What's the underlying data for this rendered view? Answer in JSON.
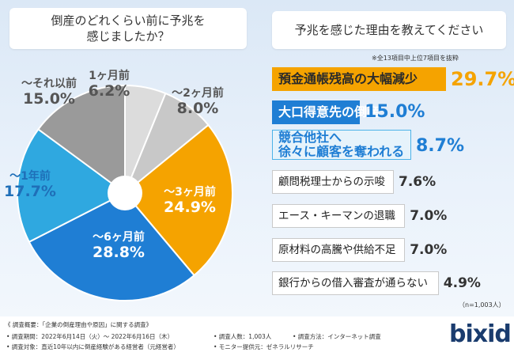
{
  "colors": {
    "orange": "#f5a300",
    "blue": "#1f7ed4",
    "light_blue": "#2fa8e0",
    "gray": "#9a9a9a",
    "light_gray": "#c8c8c8",
    "light_gray2": "#dcdcdc"
  },
  "left_title": "倒産のどれくらい前に予兆を\n感じましたか？",
  "right_title": "予兆を感じた理由を教えてください",
  "note_top": "※全13項目中上位7項目を抜粋",
  "n_note": "（n=1,003人）",
  "chart_data": [
    {
      "type": "pie",
      "title": "倒産のどれくらい前に予兆を感じましたか？",
      "slices": [
        {
          "label": "1ヶ月前",
          "value": 6.2,
          "value_text": "6.2%",
          "color": "#dcdcdc",
          "text_color": "#555555"
        },
        {
          "label": "～2ヶ月前",
          "value": 8.0,
          "value_text": "8.0%",
          "color": "#c8c8c8",
          "text_color": "#555555"
        },
        {
          "label": "～3ヶ月前",
          "value": 24.9,
          "value_text": "24.9%",
          "color": "#f5a300",
          "text_color": "#ffffff"
        },
        {
          "label": "～6ヶ月前",
          "value": 28.8,
          "value_text": "28.8%",
          "color": "#1f7ed4",
          "text_color": "#ffffff"
        },
        {
          "label": "～1年前",
          "value": 17.7,
          "value_text": "17.7%",
          "color": "#2fa8e0",
          "text_color": "#1f6fb8"
        },
        {
          "label": "～それ以前",
          "value": 15.0,
          "value_text": "15.0%",
          "color": "#9a9a9a",
          "text_color": "#555555"
        }
      ]
    },
    {
      "type": "bar",
      "orientation": "horizontal",
      "title": "予兆を感じた理由を教えてください",
      "categories": [
        "預金通帳残高の大幅減少",
        "大口得意先の倒産",
        "競合他社へ\n徐々に顧客を奪われる",
        "顧問税理士からの示唆",
        "エース・キーマンの退職",
        "原材料の高騰や供給不足",
        "銀行からの借入審査が通らない"
      ],
      "values": [
        29.7,
        15.0,
        8.7,
        7.6,
        7.0,
        7.0,
        4.9
      ],
      "value_texts": [
        "29.7%",
        "15.0%",
        "8.7%",
        "7.6%",
        "7.0%",
        "7.0%",
        "4.9%"
      ],
      "highlight": [
        "orange",
        "blue",
        "light",
        "none",
        "none",
        "none",
        "none"
      ]
    }
  ],
  "footer": {
    "line1": "《 調査概要：「企業の倒産理由や原因」に関する調査》",
    "period": "• 調査期間：2022年6月14日（火）～ 2022年6月16日（木）",
    "target": "• 調査対象：直近10年以内に倒産経験がある経営者（元経営者）",
    "people": "• 調査人数：1,003人",
    "method": "• 調査方法：インターネット調査",
    "provider": "• モニター提供元：ゼネラルリサーチ",
    "logo": "bixid"
  }
}
